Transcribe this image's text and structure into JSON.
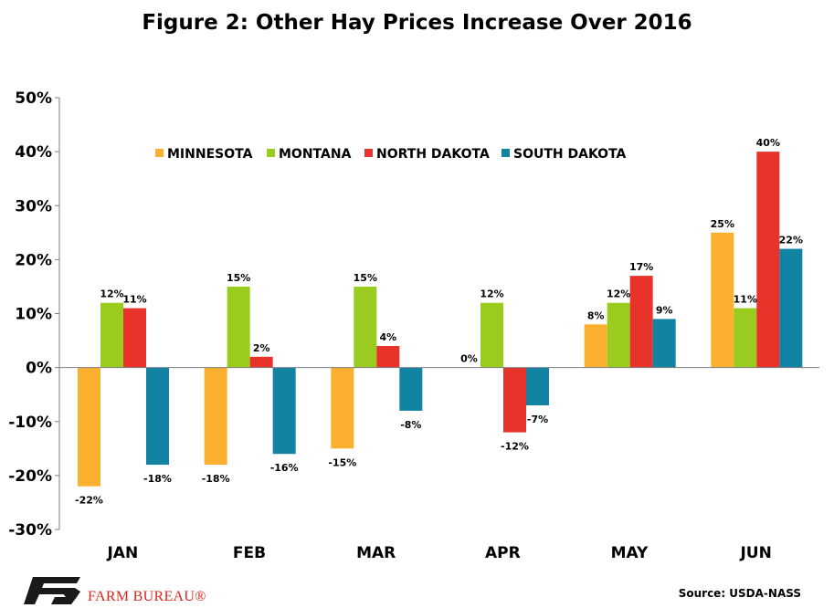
{
  "chart_data": {
    "type": "bar",
    "title": "Figure 2: Other Hay Prices Increase Over 2016",
    "xlabel": "",
    "ylabel": "",
    "categories": [
      "JAN",
      "FEB",
      "MAR",
      "APR",
      "MAY",
      "JUN"
    ],
    "ylim": [
      -30,
      50
    ],
    "yticks": [
      -30,
      -20,
      -10,
      0,
      10,
      20,
      30,
      40,
      50
    ],
    "ytick_labels": [
      "-30%",
      "-20%",
      "-10%",
      "0%",
      "10%",
      "20%",
      "30%",
      "40%",
      "50%"
    ],
    "grid": false,
    "legend_position": "top-center",
    "series": [
      {
        "name": "MINNESOTA",
        "color": "#fbb12f",
        "values": [
          -22,
          -18,
          -15,
          0,
          8,
          25
        ],
        "labels": [
          "-22%",
          "-18%",
          "-15%",
          "0%",
          "8%",
          "25%"
        ]
      },
      {
        "name": "MONTANA",
        "color": "#99cc1e",
        "values": [
          12,
          15,
          15,
          12,
          12,
          11
        ],
        "labels": [
          "12%",
          "15%",
          "15%",
          "12%",
          "12%",
          "11%"
        ]
      },
      {
        "name": "NORTH DAKOTA",
        "color": "#e8332b",
        "values": [
          11,
          2,
          4,
          -12,
          17,
          40
        ],
        "labels": [
          "11%",
          "2%",
          "4%",
          "-12%",
          "17%",
          "40%"
        ]
      },
      {
        "name": "SOUTH DAKOTA",
        "color": "#1383a3",
        "values": [
          -18,
          -16,
          -8,
          -7,
          9,
          22
        ],
        "labels": [
          "-18%",
          "-16%",
          "-8%",
          "-7%",
          "9%",
          "22%"
        ]
      }
    ]
  },
  "footer": {
    "logo_text": "FARM BUREAU®",
    "source": "Source: USDA-NASS"
  },
  "colors": {
    "logo": "#d9251c",
    "logo_mark": "#1a1a1a"
  }
}
